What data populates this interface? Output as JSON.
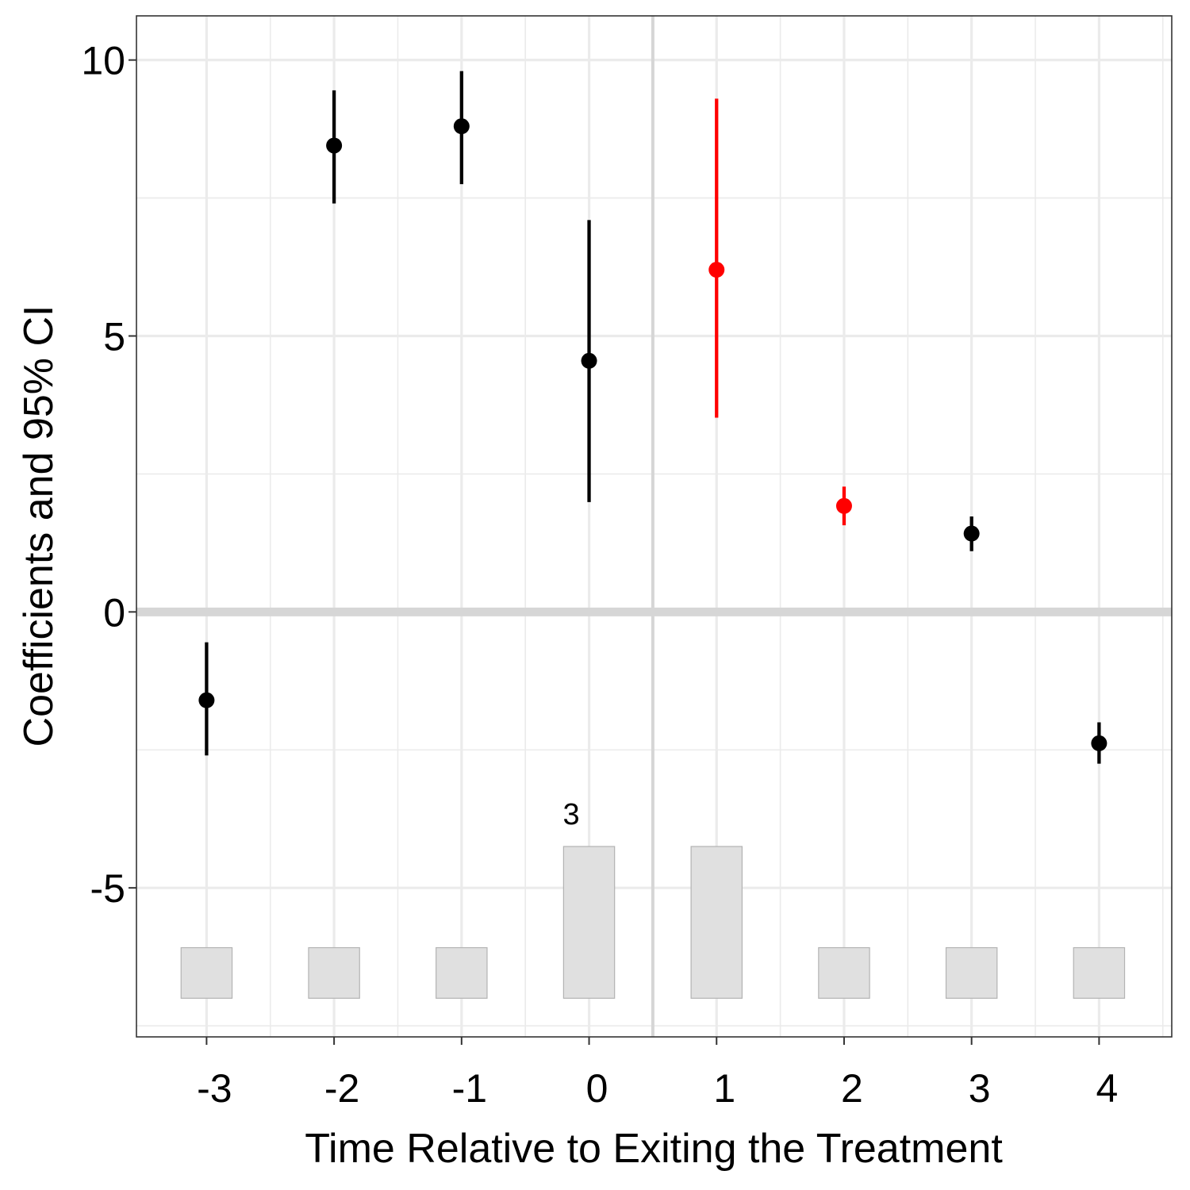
{
  "chart_data": {
    "type": "scatter",
    "title": "",
    "xlabel": "Time Relative to Exiting the Treatment",
    "ylabel": "Coefficients and 95% CI",
    "xlim": [
      -3.55,
      4.57
    ],
    "ylim": [
      -7.7,
      10.8
    ],
    "x_ticks": [
      -3,
      -2,
      -1,
      0,
      1,
      2,
      3,
      4
    ],
    "x_tick_labels": [
      "-3",
      "-2",
      "-1",
      "0",
      "1",
      "2",
      "3",
      "4"
    ],
    "y_ticks": [
      -5,
      0,
      5,
      10
    ],
    "y_tick_labels": [
      "-5",
      "0",
      "5",
      "10"
    ],
    "grid": true,
    "reference_lines": {
      "hline_y": 0,
      "vline_x": 0.5
    },
    "colors": {
      "default": "#000000",
      "highlight": "#ff0000",
      "bar_fill": "#e0e0e0",
      "bar_stroke": "#b3b3b3",
      "reference": "#d6d6d6",
      "grid": "#ebebeb"
    },
    "points": [
      {
        "x": -3,
        "estimate": -1.6,
        "ci_low": -2.6,
        "ci_high": -0.55,
        "highlight": false
      },
      {
        "x": -2,
        "estimate": 8.45,
        "ci_low": 7.4,
        "ci_high": 9.45,
        "highlight": false
      },
      {
        "x": -1,
        "estimate": 8.8,
        "ci_low": 7.75,
        "ci_high": 9.8,
        "highlight": false
      },
      {
        "x": 0,
        "estimate": 4.55,
        "ci_low": 1.99,
        "ci_high": 7.1,
        "highlight": false
      },
      {
        "x": 1,
        "estimate": 6.2,
        "ci_low": 3.52,
        "ci_high": 9.3,
        "highlight": true
      },
      {
        "x": 2,
        "estimate": 1.92,
        "ci_low": 1.57,
        "ci_high": 2.27,
        "highlight": true
      },
      {
        "x": 3,
        "estimate": 1.42,
        "ci_low": 1.1,
        "ci_high": 1.73,
        "highlight": false
      },
      {
        "x": 4,
        "estimate": -2.38,
        "ci_low": -2.75,
        "ci_high": -2.0,
        "highlight": false
      }
    ],
    "count_bars": [
      {
        "x": -3,
        "count": 1
      },
      {
        "x": -2,
        "count": 1
      },
      {
        "x": -1,
        "count": 1
      },
      {
        "x": 0,
        "count": 3
      },
      {
        "x": 1,
        "count": 3
      },
      {
        "x": 2,
        "count": 1
      },
      {
        "x": 3,
        "count": 1
      },
      {
        "x": 4,
        "count": 1
      }
    ],
    "count_bar_value_range": [
      -7.0,
      -4.25
    ],
    "count_annotation": {
      "x": 0,
      "text": "3"
    }
  }
}
